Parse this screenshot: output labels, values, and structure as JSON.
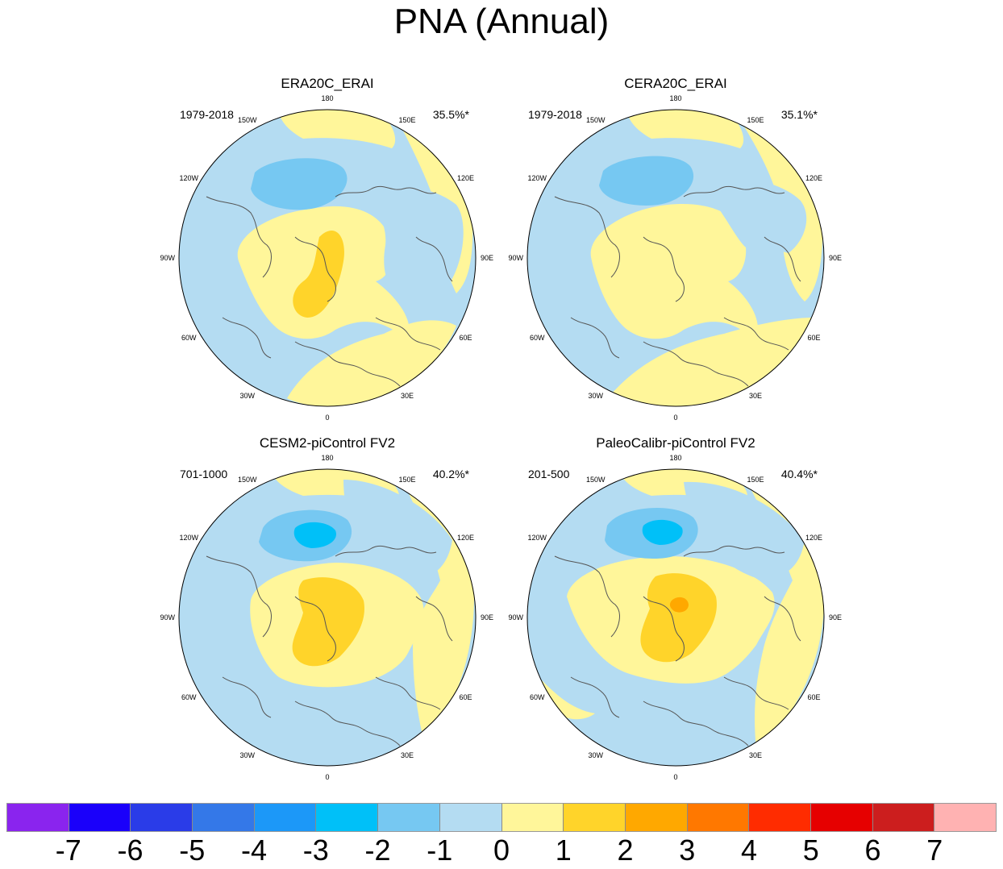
{
  "title": "PNA (Annual)",
  "colors": {
    "neg7": "#8a24ee",
    "neg6": "#1a00fa",
    "neg5": "#2a3ce8",
    "neg4": "#3478e8",
    "neg3": "#1c98f8",
    "neg2": "#00c0f8",
    "neg1": "#76c8f2",
    "zero": "#b4dcf2",
    "pos1": "#fff69a",
    "pos2": "#ffd42a",
    "pos3": "#ffa800",
    "pos4": "#ff7800",
    "pos5": "#ff2c00",
    "pos6": "#e60000",
    "pos7": "#cc1e1e",
    "pos8": "#ffb2b2"
  },
  "panels": [
    {
      "title": "ERA20C_ERAI",
      "period": "1979-2018",
      "percent": "35.5%*"
    },
    {
      "title": "CERA20C_ERAI",
      "period": "1979-2018",
      "percent": "35.1%*"
    },
    {
      "title": "CESM2-piControl FV2",
      "period": "701-1000",
      "percent": "40.2%*"
    },
    {
      "title": "PaleoCalibr-piControl FV2",
      "period": "201-500",
      "percent": "40.4%*"
    }
  ],
  "longitude_labels": {
    "l180": "180",
    "l150e": "150E",
    "l120e": "120E",
    "l90e": "90E",
    "l60e": "60E",
    "l30e": "30E",
    "l0": "0",
    "l30w": "30W",
    "l60w": "60W",
    "l90w": "90W",
    "l120w": "120W",
    "l150w": "150W"
  },
  "colorbar": {
    "tick_labels": [
      "-7",
      "-6",
      "-5",
      "-4",
      "-3",
      "-2",
      "-1",
      "0",
      "1",
      "2",
      "3",
      "4",
      "5",
      "6",
      "7"
    ]
  }
}
